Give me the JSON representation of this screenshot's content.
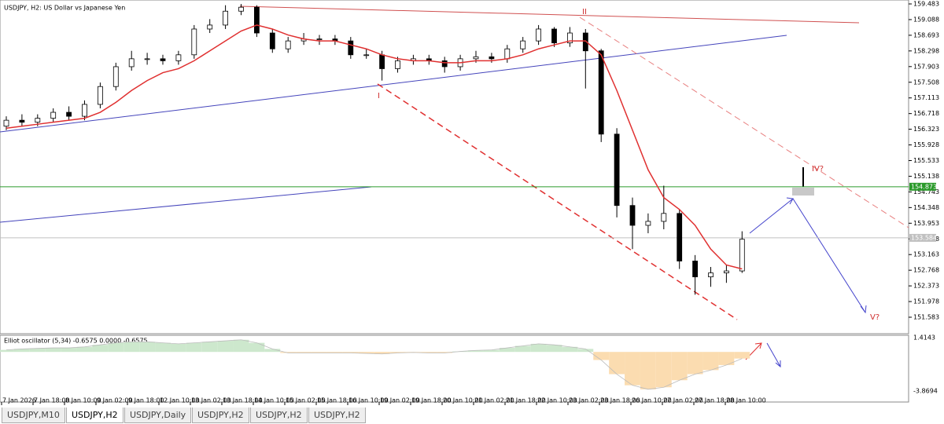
{
  "chart_data": {
    "type": "candlestick",
    "title": "USDJPY, H2:  US Dollar vs Japanese Yen",
    "open": [
      156.4,
      156.55,
      156.5,
      156.6,
      156.75,
      156.65,
      156.95,
      157.4,
      157.9,
      158.1,
      158.1,
      158.05,
      158.2,
      158.85,
      158.95,
      159.3,
      159.4,
      158.75,
      158.35,
      158.55,
      158.6,
      158.6,
      158.55,
      158.2,
      158.2,
      157.85,
      158.05,
      158.1,
      158.05,
      157.9,
      158.1,
      158.15,
      158.1,
      158.35,
      158.55,
      158.85,
      158.5,
      158.75,
      158.3,
      156.2,
      154.4,
      153.9,
      154.0,
      154.2,
      153.0,
      152.6,
      152.7,
      152.75
    ],
    "high": [
      156.65,
      156.7,
      156.7,
      156.85,
      156.9,
      157.05,
      157.5,
      158.0,
      158.3,
      158.25,
      158.2,
      158.3,
      158.95,
      159.1,
      159.45,
      159.48,
      159.45,
      158.85,
      158.65,
      158.75,
      158.7,
      158.7,
      158.65,
      158.35,
      158.3,
      158.15,
      158.2,
      158.2,
      158.15,
      158.2,
      158.3,
      158.25,
      158.45,
      158.65,
      158.95,
      158.9,
      158.9,
      158.85,
      158.35,
      156.35,
      154.6,
      154.2,
      154.9,
      154.3,
      153.15,
      152.85,
      152.9,
      153.75
    ],
    "low": [
      156.3,
      156.4,
      156.4,
      156.5,
      156.55,
      156.55,
      156.85,
      157.3,
      157.8,
      157.95,
      157.95,
      157.95,
      158.1,
      158.75,
      158.85,
      159.2,
      158.65,
      158.25,
      158.25,
      158.45,
      158.45,
      158.45,
      158.1,
      158.1,
      157.55,
      157.75,
      157.95,
      157.95,
      157.75,
      157.8,
      158.0,
      158.0,
      158.0,
      158.25,
      158.45,
      158.4,
      158.4,
      157.35,
      156.0,
      154.1,
      153.3,
      153.7,
      153.8,
      152.8,
      152.15,
      152.35,
      152.45,
      152.7
    ],
    "close": [
      156.55,
      156.5,
      156.6,
      156.75,
      156.65,
      156.95,
      157.4,
      157.9,
      158.1,
      158.1,
      158.05,
      158.2,
      158.85,
      158.95,
      159.3,
      159.4,
      158.75,
      158.35,
      158.55,
      158.6,
      158.6,
      158.55,
      158.2,
      158.2,
      157.85,
      158.05,
      158.1,
      158.05,
      157.9,
      158.1,
      158.15,
      158.1,
      158.35,
      158.55,
      158.85,
      158.5,
      158.75,
      158.3,
      156.2,
      154.4,
      153.9,
      154.0,
      154.2,
      153.0,
      152.6,
      152.7,
      152.75,
      153.55
    ],
    "ma": [
      156.35,
      156.4,
      156.45,
      156.5,
      156.55,
      156.6,
      156.75,
      157.0,
      157.3,
      157.55,
      157.75,
      157.85,
      158.05,
      158.3,
      158.55,
      158.8,
      158.95,
      158.85,
      158.7,
      158.6,
      158.55,
      158.55,
      158.45,
      158.35,
      158.2,
      158.1,
      158.05,
      158.05,
      158.0,
      158.0,
      158.05,
      158.05,
      158.1,
      158.2,
      158.35,
      158.45,
      158.55,
      158.55,
      158.2,
      157.3,
      156.3,
      155.3,
      154.6,
      154.3,
      153.9,
      153.3,
      152.9,
      152.8
    ],
    "ma_color": "#e03030",
    "ylim": [
      151.583,
      159.483
    ],
    "yticks": [
      159.483,
      159.088,
      158.693,
      158.298,
      157.903,
      157.508,
      157.113,
      156.718,
      156.323,
      155.928,
      155.533,
      155.138,
      154.743,
      154.348,
      153.953,
      153.558,
      153.163,
      152.768,
      152.373,
      151.978,
      151.583
    ],
    "price_lines": [
      {
        "value": 154.873,
        "color": "#2a9a2a"
      },
      {
        "value": 153.584,
        "color": "#c0c0c0"
      }
    ],
    "xlabels": [
      "7 Jan 2026",
      "7 Jan 18:00",
      "8 Jan 10:00",
      "9 Jan 02:00",
      "9 Jan 18:00",
      "12 Jan 10:00",
      "13 Jan 02:00",
      "13 Jan 18:00",
      "14 Jan 10:00",
      "15 Jan 02:00",
      "15 Jan 18:00",
      "16 Jan 10:00",
      "19 Jan 02:00",
      "19 Jan 18:00",
      "20 Jan 10:00",
      "21 Jan 02:00",
      "21 Jan 18:00",
      "22 Jan 10:00",
      "23 Jan 02:00",
      "23 Jan 18:00",
      "26 Jan 10:00",
      "27 Jan 02:00",
      "27 Jan 18:00",
      "28 Jan 10:00"
    ],
    "annotations": [
      "I",
      "II",
      "IV?",
      "V?"
    ],
    "oscillator": {
      "title": "Elliot oscillator (5,34) -0.6575 0.0000 -0.6575",
      "values": [
        0.2,
        0.3,
        0.35,
        0.4,
        0.4,
        0.5,
        0.7,
        0.9,
        1.0,
        1.0,
        0.9,
        0.8,
        0.9,
        1.0,
        1.1,
        1.2,
        0.9,
        0.3,
        -0.1,
        -0.1,
        -0.1,
        -0.1,
        -0.1,
        -0.15,
        -0.2,
        -0.1,
        -0.05,
        -0.1,
        -0.1,
        0.05,
        0.15,
        0.2,
        0.4,
        0.6,
        0.8,
        0.7,
        0.5,
        0.3,
        -0.8,
        -2.2,
        -3.3,
        -3.7,
        -3.5,
        -2.8,
        -2.2,
        -1.8,
        -1.3,
        -0.6575
      ],
      "ylim": [
        -3.8694,
        1.4143
      ],
      "yticks": [
        1.4143,
        -3.8694
      ]
    }
  },
  "tabs": [
    "USDJPY,M10",
    "USDJPY,H2",
    "USDJPY,Daily",
    "USDJPY,H2",
    "USDJPY,H2",
    "USDJPY,H2"
  ]
}
